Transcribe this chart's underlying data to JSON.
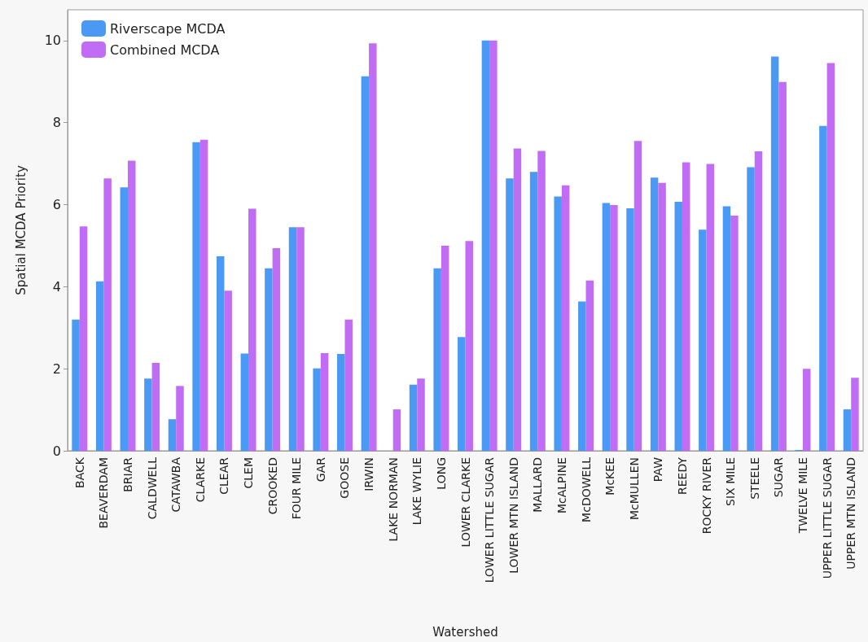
{
  "chart_data": {
    "type": "bar",
    "xlabel": "Watershed",
    "ylabel": "Spatial MCDA Priority",
    "categories": [
      "BACK",
      "BEAVERDAM",
      "BRIAR",
      "CALDWELL",
      "CATAWBA",
      "CLARKE",
      "CLEAR",
      "CLEM",
      "CROOKED",
      "FOUR MILE",
      "GAR",
      "GOOSE",
      "IRWIN",
      "LAKE NORMAN",
      "LAKE WYLIE",
      "LONG",
      "LOWER CLARKE",
      "LOWER LITTLE SUGAR",
      "LOWER MTN ISLAND",
      "MALLARD",
      "McALPINE",
      "McDOWELL",
      "McKEE",
      "McMULLEN",
      "PAW",
      "REEDY",
      "ROCKY RIVER",
      "SIX MILE",
      "STEELE",
      "SUGAR",
      "TWELVE MILE",
      "UPPER LITTLE SUGAR",
      "UPPER MTN ISLAND"
    ],
    "series": [
      {
        "name": "Riverscape MCDA",
        "color": "#4a9af5",
        "values": [
          3.2,
          4.13,
          6.42,
          1.76,
          0.77,
          7.52,
          4.74,
          2.37,
          4.45,
          5.45,
          2.01,
          2.36,
          9.13,
          0,
          1.61,
          4.45,
          2.77,
          10,
          6.64,
          6.8,
          6.2,
          3.64,
          6.04,
          5.91,
          6.66,
          6.07,
          5.39,
          5.96,
          6.91,
          9.61,
          0.02,
          7.92,
          1.01
        ]
      },
      {
        "name": "Combined MCDA",
        "color": "#c06cf5",
        "values": [
          5.47,
          6.64,
          7.07,
          2.14,
          1.58,
          7.58,
          3.9,
          5.9,
          4.94,
          5.45,
          2.38,
          3.2,
          9.93,
          1.01,
          1.76,
          5.0,
          5.11,
          10,
          7.37,
          7.31,
          6.47,
          4.15,
          5.99,
          7.55,
          6.53,
          7.03,
          6.99,
          5.73,
          7.3,
          8.99,
          2.0,
          9.45,
          1.78
        ]
      }
    ],
    "ylim": [
      0,
      10.75
    ],
    "yticks": [
      0,
      2,
      4,
      6,
      8,
      10
    ],
    "grid": false,
    "legend": "top left"
  }
}
